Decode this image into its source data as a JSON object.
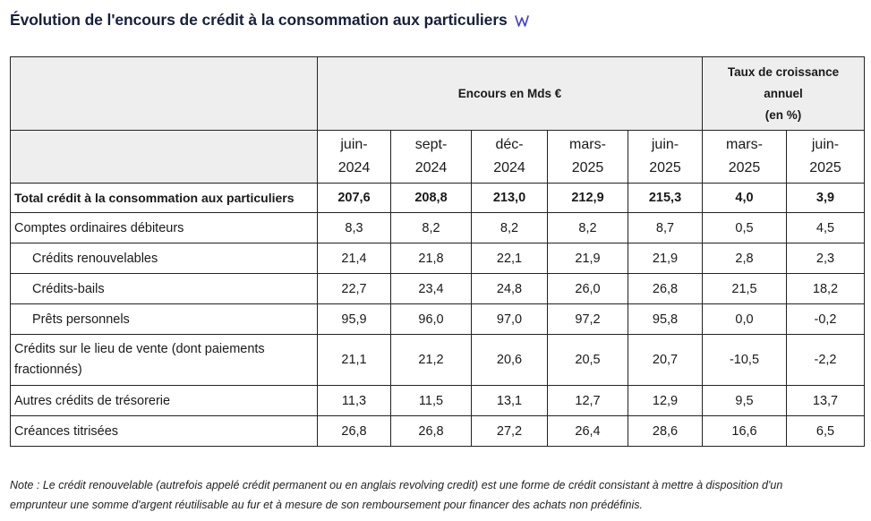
{
  "title": "Évolution de l'encours de crédit à la consommation aux particuliers",
  "colors": {
    "title": "#16213e",
    "icon": "#3b3bd9",
    "header_bg": "#eeeeee",
    "border": "#222222"
  },
  "headers": {
    "group_encours": "Encours en Mds €",
    "group_taux": [
      "Taux de croissance",
      "annuel",
      "(en %)"
    ],
    "periods": [
      [
        "juin-",
        "2024"
      ],
      [
        "sept-",
        "2024"
      ],
      [
        "déc-",
        "2024"
      ],
      [
        "mars-",
        "2025"
      ],
      [
        "juin-",
        "2025"
      ],
      [
        "mars-",
        "2025"
      ],
      [
        "juin-",
        "2025"
      ]
    ]
  },
  "rows": [
    {
      "label": "Total crédit à la consommation aux particuliers",
      "values": [
        "207,6",
        "208,8",
        "213,0",
        "212,9",
        "215,3",
        "4,0",
        "3,9"
      ]
    },
    {
      "label": "Comptes ordinaires débiteurs",
      "values": [
        "8,3",
        "8,2",
        "8,2",
        "8,2",
        "8,7",
        "0,5",
        "4,5"
      ]
    },
    {
      "label": "Crédits renouvelables",
      "values": [
        "21,4",
        "21,8",
        "22,1",
        "21,9",
        "21,9",
        "2,8",
        "2,3"
      ]
    },
    {
      "label": "Crédits-bails",
      "values": [
        "22,7",
        "23,4",
        "24,8",
        "26,0",
        "26,8",
        "21,5",
        "18,2"
      ]
    },
    {
      "label": "Prêts personnels",
      "values": [
        "95,9",
        "96,0",
        "97,0",
        "97,2",
        "95,8",
        "0,0",
        "-0,2"
      ]
    },
    {
      "label": "Crédits sur le lieu de vente (dont paiements fractionnés)",
      "values": [
        "21,1",
        "21,2",
        "20,6",
        "20,5",
        "20,7",
        "-10,5",
        "-2,2"
      ]
    },
    {
      "label": "Autres crédits de trésorerie",
      "values": [
        "11,3",
        "11,5",
        "13,1",
        "12,7",
        "12,9",
        "9,5",
        "13,7"
      ]
    },
    {
      "label": "Créances titrisées",
      "values": [
        "26,8",
        "26,8",
        "27,2",
        "26,4",
        "28,6",
        "16,6",
        "6,5"
      ]
    }
  ],
  "note": "Note : Le crédit renouvelable (autrefois appelé crédit permanent ou en anglais revolving credit) est une forme de crédit consistant à mettre à disposition d'un emprunteur une somme d'argent réutilisable au fur et à mesure de son remboursement pour financer des achats non prédéfinis."
}
